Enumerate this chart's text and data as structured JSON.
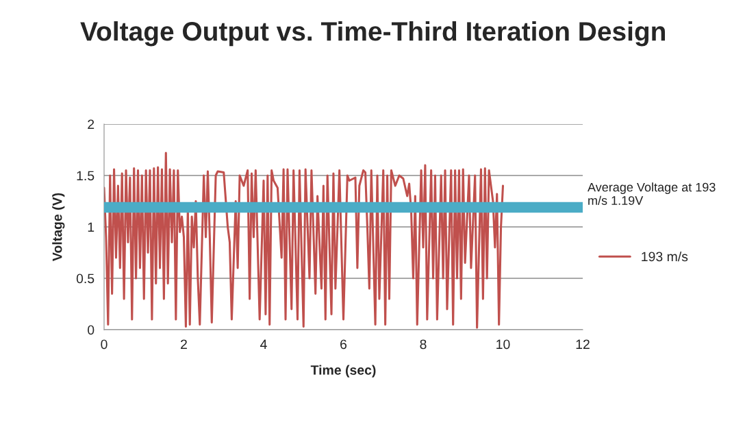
{
  "chart_data": {
    "type": "line",
    "title": "Voltage Output vs. Time-Third Iteration Design",
    "xlabel": "Time (sec)",
    "ylabel": "Voltage (V)",
    "x": [
      0.0,
      0.05,
      0.1,
      0.15,
      0.2,
      0.25,
      0.3,
      0.35,
      0.4,
      0.45,
      0.5,
      0.55,
      0.6,
      0.65,
      0.7,
      0.75,
      0.8,
      0.85,
      0.9,
      0.95,
      1.0,
      1.05,
      1.1,
      1.15,
      1.2,
      1.25,
      1.3,
      1.35,
      1.4,
      1.45,
      1.5,
      1.55,
      1.6,
      1.65,
      1.7,
      1.75,
      1.8,
      1.85,
      1.9,
      1.95,
      2.0,
      2.05,
      2.1,
      2.15,
      2.2,
      2.25,
      2.3,
      2.35,
      2.4,
      2.5,
      2.55,
      2.6,
      2.65,
      2.7,
      2.8,
      2.85,
      3.0,
      3.1,
      3.15,
      3.2,
      3.3,
      3.35,
      3.4,
      3.5,
      3.6,
      3.65,
      3.7,
      3.75,
      3.8,
      3.9,
      4.0,
      4.05,
      4.1,
      4.15,
      4.2,
      4.25,
      4.35,
      4.45,
      4.5,
      4.55,
      4.6,
      4.7,
      4.75,
      4.85,
      4.9,
      5.0,
      5.05,
      5.15,
      5.2,
      5.3,
      5.35,
      5.45,
      5.5,
      5.55,
      5.6,
      5.7,
      5.75,
      5.8,
      5.9,
      6.0,
      6.1,
      6.15,
      6.3,
      6.35,
      6.4,
      6.5,
      6.55,
      6.6,
      6.65,
      6.7,
      6.8,
      6.85,
      6.9,
      7.0,
      7.05,
      7.1,
      7.15,
      7.2,
      7.3,
      7.4,
      7.5,
      7.6,
      7.65,
      7.7,
      7.75,
      7.8,
      7.85,
      7.95,
      8.0,
      8.05,
      8.1,
      8.2,
      8.25,
      8.3,
      8.35,
      8.45,
      8.5,
      8.55,
      8.6,
      8.7,
      8.75,
      8.8,
      8.85,
      8.9,
      8.95,
      9.0,
      9.05,
      9.15,
      9.2,
      9.3,
      9.35,
      9.45,
      9.5,
      9.55,
      9.6,
      9.65,
      9.75,
      9.8,
      9.85,
      9.9,
      9.95,
      10.0
    ],
    "series": [
      {
        "name": "193 m/s",
        "color": "#c0504d",
        "values": [
          1.38,
          0.9,
          0.05,
          1.5,
          0.35,
          1.56,
          0.7,
          1.4,
          0.6,
          1.52,
          0.3,
          1.55,
          0.85,
          1.48,
          0.1,
          1.57,
          0.5,
          1.55,
          0.6,
          1.5,
          0.3,
          1.55,
          0.75,
          1.55,
          0.1,
          1.57,
          0.45,
          1.58,
          0.6,
          1.56,
          0.3,
          1.72,
          0.45,
          1.56,
          0.85,
          1.55,
          0.1,
          1.55,
          0.95,
          1.1,
          0.9,
          0.03,
          1.17,
          0.05,
          1.1,
          0.8,
          1.25,
          0.5,
          0.05,
          1.5,
          0.9,
          1.54,
          0.9,
          0.07,
          1.5,
          1.54,
          1.53,
          1.0,
          0.85,
          0.1,
          1.25,
          0.6,
          1.5,
          1.4,
          1.55,
          0.3,
          1.52,
          0.9,
          1.55,
          0.1,
          1.45,
          0.15,
          1.5,
          0.05,
          1.55,
          1.45,
          1.38,
          0.7,
          1.56,
          0.1,
          1.56,
          0.2,
          1.55,
          0.1,
          1.55,
          0.03,
          1.56,
          0.5,
          1.55,
          0.35,
          1.3,
          0.4,
          1.4,
          0.1,
          1.5,
          0.15,
          1.52,
          0.4,
          1.55,
          0.1,
          1.5,
          1.45,
          1.48,
          0.6,
          1.4,
          1.55,
          1.53,
          1.0,
          0.4,
          1.55,
          0.05,
          1.5,
          0.3,
          1.55,
          0.05,
          1.5,
          0.3,
          1.55,
          1.4,
          1.5,
          1.47,
          1.3,
          1.42,
          1.15,
          0.5,
          1.3,
          0.05,
          1.55,
          0.8,
          1.6,
          0.1,
          1.55,
          0.5,
          1.5,
          0.1,
          1.5,
          0.5,
          1.55,
          0.2,
          1.55,
          0.05,
          1.55,
          0.5,
          1.55,
          0.3,
          1.56,
          0.65,
          1.5,
          0.6,
          1.5,
          0.02,
          1.56,
          0.3,
          1.57,
          0.5,
          1.55,
          1.25,
          0.8,
          1.32,
          0.05,
          1.0,
          1.4
        ]
      }
    ],
    "xlim": [
      0,
      12
    ],
    "xticks": [
      0,
      2,
      4,
      6,
      8,
      10,
      12
    ],
    "ylim": [
      0,
      2
    ],
    "yticks": [
      0,
      0.5,
      1,
      1.5,
      2
    ],
    "ref_lines": [
      {
        "axis": "y",
        "value": 1.19,
        "label": "Average Voltage at 193 m/s 1.19V",
        "color": "#4bacc6"
      }
    ],
    "grid": "y",
    "legend": "right",
    "marker": "none",
    "line_style": "solid"
  }
}
